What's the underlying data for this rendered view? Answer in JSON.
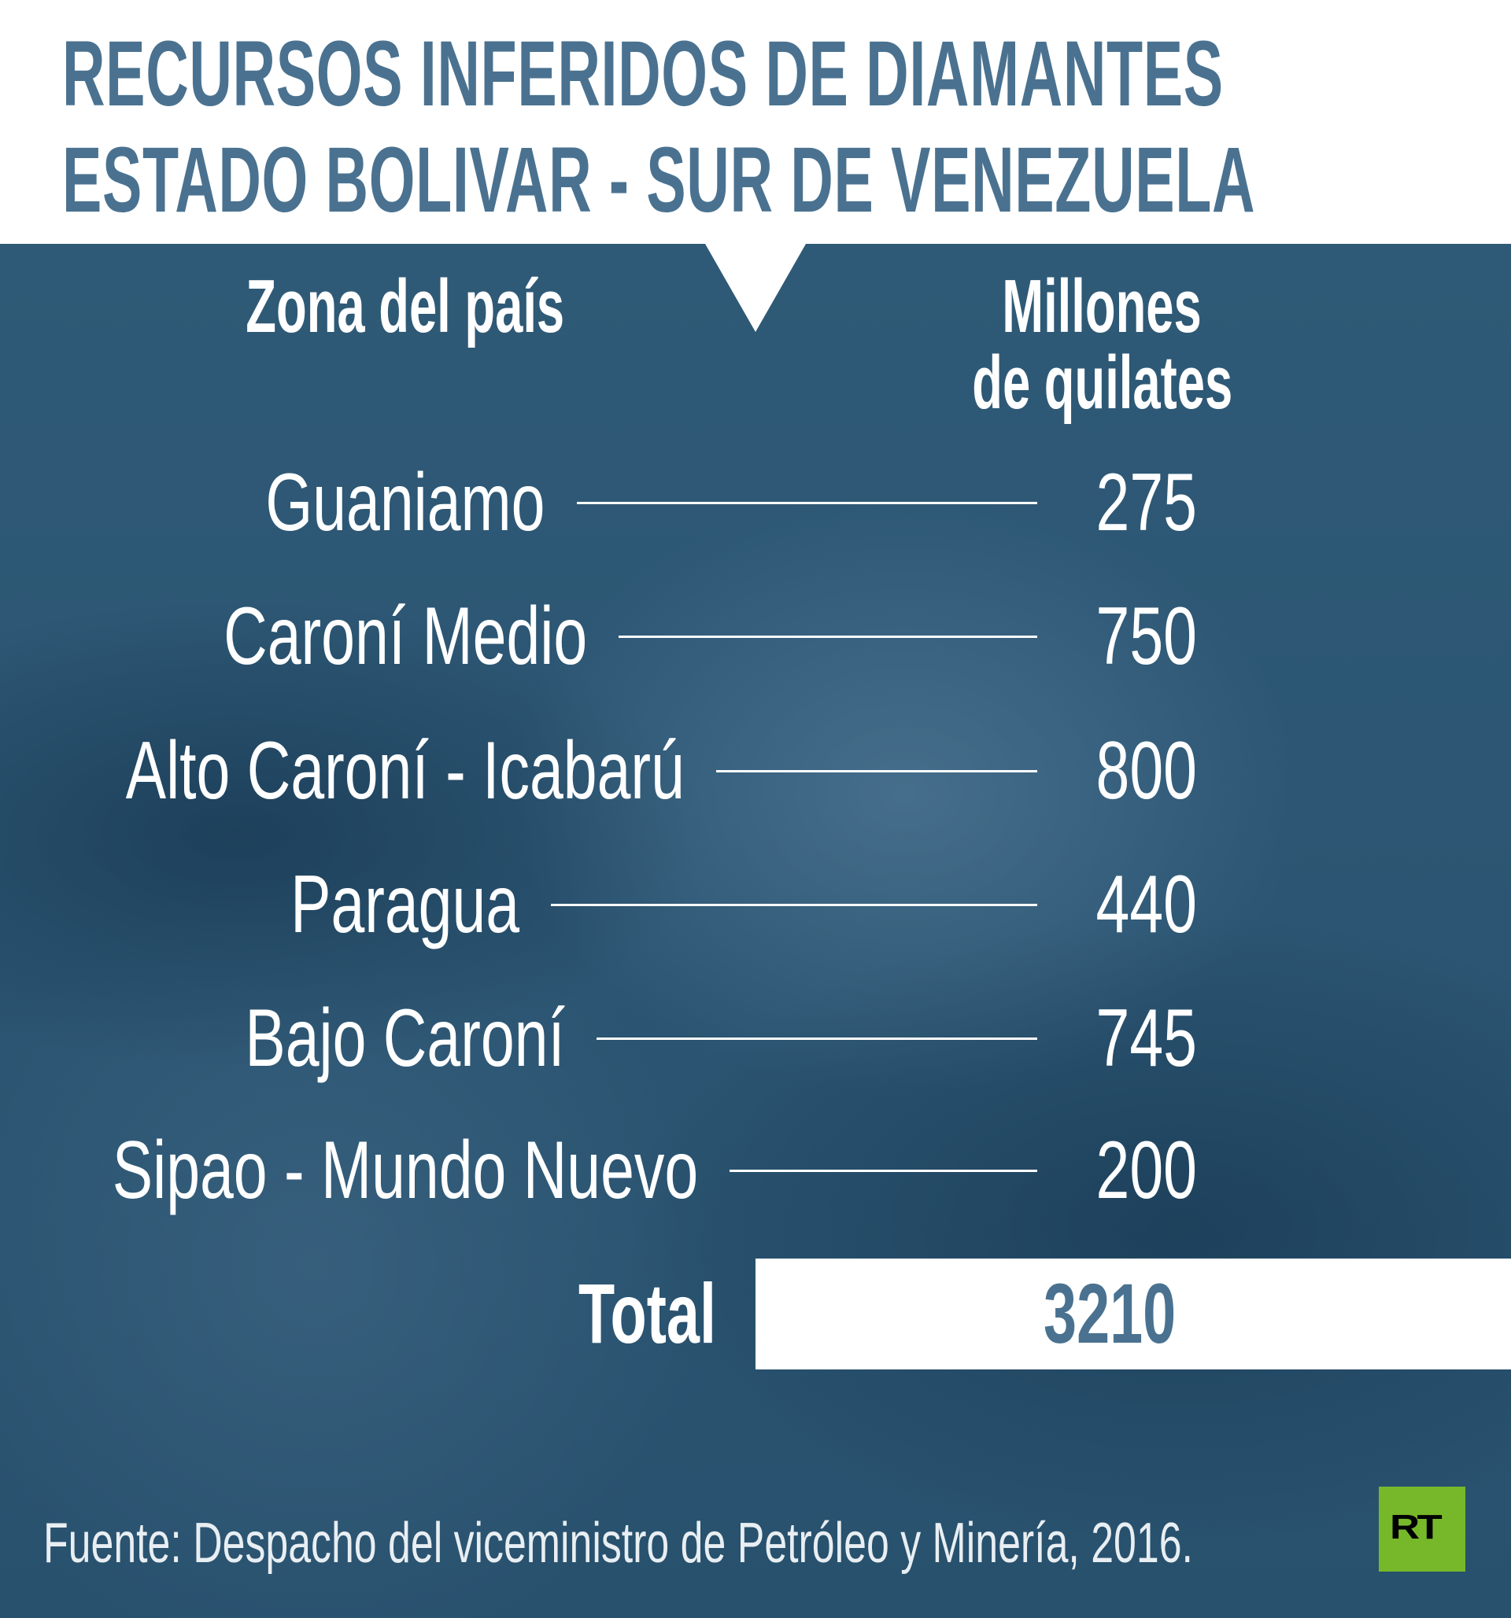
{
  "title": {
    "line1": "RECURSOS INFERIDOS DE DIAMANTES",
    "line2": "ESTADO BOLIVAR - SUR DE VENEZUELA"
  },
  "headers": {
    "zone": "Zona del país",
    "value_line1": "Millones",
    "value_line2": "de quilates"
  },
  "rows": [
    {
      "zone": "Guaniamo",
      "value": "275"
    },
    {
      "zone": "Caroní Medio",
      "value": "750"
    },
    {
      "zone": "Alto Caroní - Icabarú",
      "value": "800"
    },
    {
      "zone": "Paragua",
      "value": "440"
    },
    {
      "zone": "Bajo Caroní",
      "value": "745"
    },
    {
      "zone": "Sipao - Mundo Nuevo",
      "value": "200"
    }
  ],
  "total": {
    "label": "Total",
    "value": "3210"
  },
  "footer": {
    "source": "Fuente: Despacho del viceministro de Petróleo y Minería, 2016."
  },
  "logo": {
    "text": "RT"
  },
  "colors": {
    "title": "#4a7290",
    "panel": "#2b5572",
    "logo": "#77b82a"
  }
}
